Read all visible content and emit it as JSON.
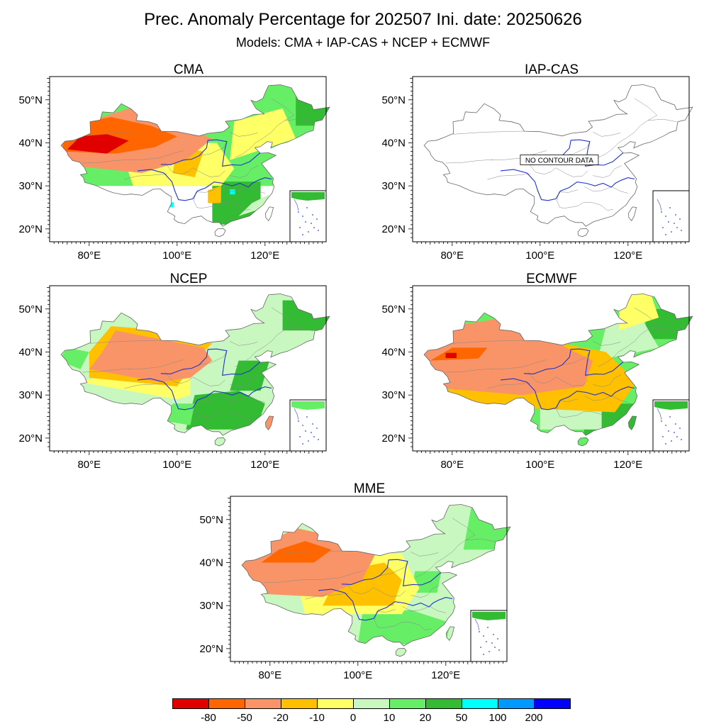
{
  "figure": {
    "title": "Prec. Anomaly Percentage for 202507 Ini. date: 20250626",
    "subtitle": "Models: CMA + IAP-CAS + NCEP + ECMWF"
  },
  "axes": {
    "lat_ticks": [
      "50°N",
      "40°N",
      "30°N",
      "20°N"
    ],
    "lon_ticks": [
      "80°E",
      "100°E",
      "120°E"
    ]
  },
  "panels": [
    {
      "name": "CMA",
      "has_data": true,
      "fill": "cma"
    },
    {
      "name": "IAP-CAS",
      "has_data": false,
      "no_data_text": "NO CONTOUR DATA"
    },
    {
      "name": "NCEP",
      "has_data": true,
      "fill": "ncep"
    },
    {
      "name": "ECMWF",
      "has_data": true,
      "fill": "ecmwf"
    },
    {
      "name": "MME",
      "has_data": true,
      "fill": "mme"
    }
  ],
  "legend": {
    "colors": [
      "#e00000",
      "#ff6600",
      "#f89468",
      "#ffc000",
      "#ffff66",
      "#c8f8c0",
      "#66ee66",
      "#33bb33",
      "#00ffff",
      "#0099ff",
      "#0000ff"
    ],
    "labels": [
      "-80",
      "-50",
      "-20",
      "-10",
      "0",
      "10",
      "20",
      "50",
      "100",
      "200"
    ]
  }
}
